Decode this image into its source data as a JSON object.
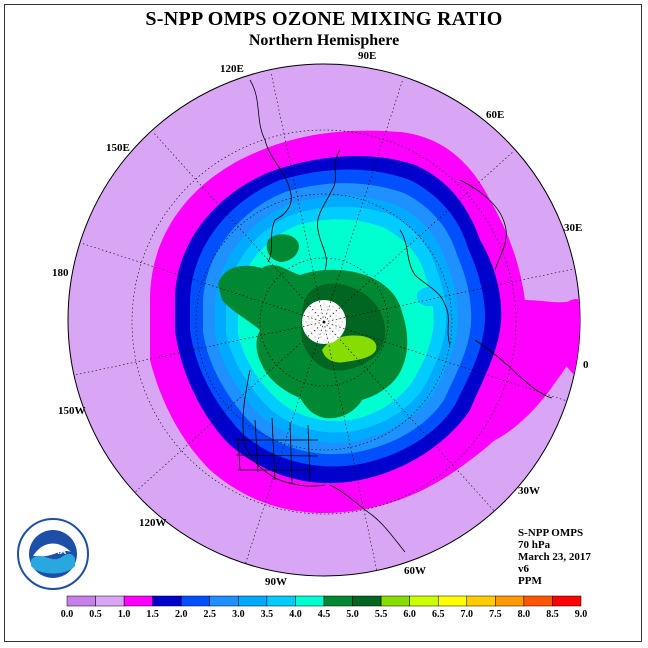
{
  "title": "S-NPP OMPS OZONE MIXING RATIO",
  "subtitle": "Northern Hemisphere",
  "longitude_labels": [
    "90E",
    "60E",
    "30E",
    "0",
    "30W",
    "60W",
    "90W",
    "120W",
    "150W",
    "180",
    "150E",
    "120E"
  ],
  "info": {
    "satellite": "S-NPP OMPS",
    "level": "70 hPa",
    "date": "March 23, 2017",
    "version": "v6",
    "units": "PPM"
  },
  "logo_text": "NOAA",
  "colorbar": {
    "labels": [
      "0.0",
      "0.5",
      "1.0",
      "1.5",
      "2.0",
      "2.5",
      "3.0",
      "3.5",
      "4.0",
      "4.5",
      "5.0",
      "5.5",
      "6.0",
      "6.5",
      "7.0",
      "7.5",
      "8.0",
      "8.5",
      "9.0"
    ],
    "colors": [
      "#c77fe9",
      "#d9a6f5",
      "#ff00ff",
      "#0000cc",
      "#0050ff",
      "#1e90ff",
      "#00aaff",
      "#00ccff",
      "#00ffd0",
      "#008833",
      "#006622",
      "#88dd00",
      "#ccff00",
      "#ffff00",
      "#ffcc00",
      "#ff9900",
      "#ff5500",
      "#ff0000",
      "#8b5a2b"
    ]
  },
  "map_colors": {
    "background": "#d9a6f5",
    "band_1_0": "#ff00ff",
    "band_1_5": "#0000cc",
    "band_2_0": "#0050ff",
    "band_2_5": "#1e90ff",
    "band_3_0": "#00aaff",
    "band_3_5": "#00ccff",
    "band_4_0": "#00ffd0",
    "band_4_5": "#008833",
    "band_5_0": "#006622",
    "band_5_5": "#88dd00"
  }
}
